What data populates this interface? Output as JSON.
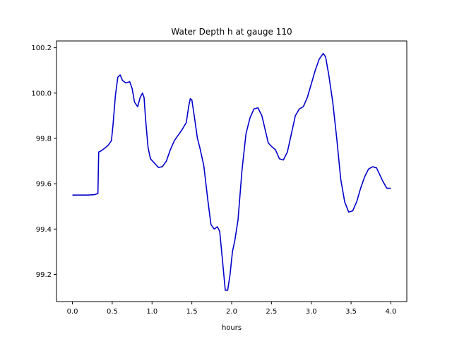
{
  "chart_data": {
    "type": "line",
    "title": "Water Depth h at gauge 110",
    "xlabel": "hours",
    "ylabel": "",
    "xlim": [
      -0.2,
      4.2
    ],
    "ylim": [
      99.08,
      100.23
    ],
    "xticks": [
      0.0,
      0.5,
      1.0,
      1.5,
      2.0,
      2.5,
      3.0,
      3.5,
      4.0
    ],
    "xtick_labels": [
      "0.0",
      "0.5",
      "1.0",
      "1.5",
      "2.0",
      "2.5",
      "3.0",
      "3.5",
      "4.0"
    ],
    "yticks": [
      99.2,
      99.4,
      99.6,
      99.8,
      100.0,
      100.2
    ],
    "ytick_labels": [
      "99.2",
      "99.4",
      "99.6",
      "99.8",
      "100.0",
      "100.2"
    ],
    "grid": false,
    "series": [
      {
        "color": "#0000cc",
        "x": [
          0.0,
          0.1,
          0.2,
          0.28,
          0.32,
          0.33,
          0.36,
          0.4,
          0.45,
          0.49,
          0.51,
          0.54,
          0.57,
          0.6,
          0.63,
          0.67,
          0.72,
          0.75,
          0.78,
          0.82,
          0.85,
          0.88,
          0.9,
          0.92,
          0.95,
          0.98,
          1.02,
          1.08,
          1.13,
          1.18,
          1.23,
          1.28,
          1.33,
          1.38,
          1.43,
          1.46,
          1.48,
          1.5,
          1.53,
          1.57,
          1.6,
          1.65,
          1.7,
          1.74,
          1.78,
          1.82,
          1.85,
          1.88,
          1.92,
          1.95,
          1.98,
          2.01,
          2.04,
          2.08,
          2.13,
          2.18,
          2.23,
          2.28,
          2.33,
          2.38,
          2.42,
          2.46,
          2.5,
          2.55,
          2.6,
          2.65,
          2.7,
          2.75,
          2.8,
          2.85,
          2.9,
          2.95,
          3.0,
          3.05,
          3.1,
          3.15,
          3.18,
          3.22,
          3.27,
          3.32,
          3.37,
          3.42,
          3.47,
          3.52,
          3.57,
          3.62,
          3.67,
          3.72,
          3.77,
          3.82,
          3.86,
          3.9,
          3.95,
          4.0
        ],
        "y": [
          99.55,
          99.55,
          99.55,
          99.552,
          99.557,
          99.74,
          99.745,
          99.755,
          99.77,
          99.79,
          99.86,
          99.99,
          100.07,
          100.08,
          100.055,
          100.045,
          100.05,
          100.02,
          99.96,
          99.94,
          99.98,
          100.0,
          99.98,
          99.88,
          99.76,
          99.71,
          99.695,
          99.672,
          99.675,
          99.7,
          99.75,
          99.79,
          99.815,
          99.84,
          99.87,
          99.94,
          99.975,
          99.97,
          99.9,
          99.8,
          99.76,
          99.68,
          99.53,
          99.42,
          99.4,
          99.41,
          99.39,
          99.28,
          99.13,
          99.13,
          99.2,
          99.3,
          99.35,
          99.44,
          99.66,
          99.82,
          99.89,
          99.93,
          99.935,
          99.9,
          99.84,
          99.78,
          99.765,
          99.75,
          99.71,
          99.705,
          99.74,
          99.82,
          99.9,
          99.93,
          99.94,
          99.98,
          100.04,
          100.1,
          100.15,
          100.175,
          100.16,
          100.08,
          99.96,
          99.8,
          99.62,
          99.52,
          99.475,
          99.48,
          99.52,
          99.58,
          99.63,
          99.665,
          99.675,
          99.67,
          99.64,
          99.61,
          99.58,
          99.58
        ]
      }
    ]
  }
}
